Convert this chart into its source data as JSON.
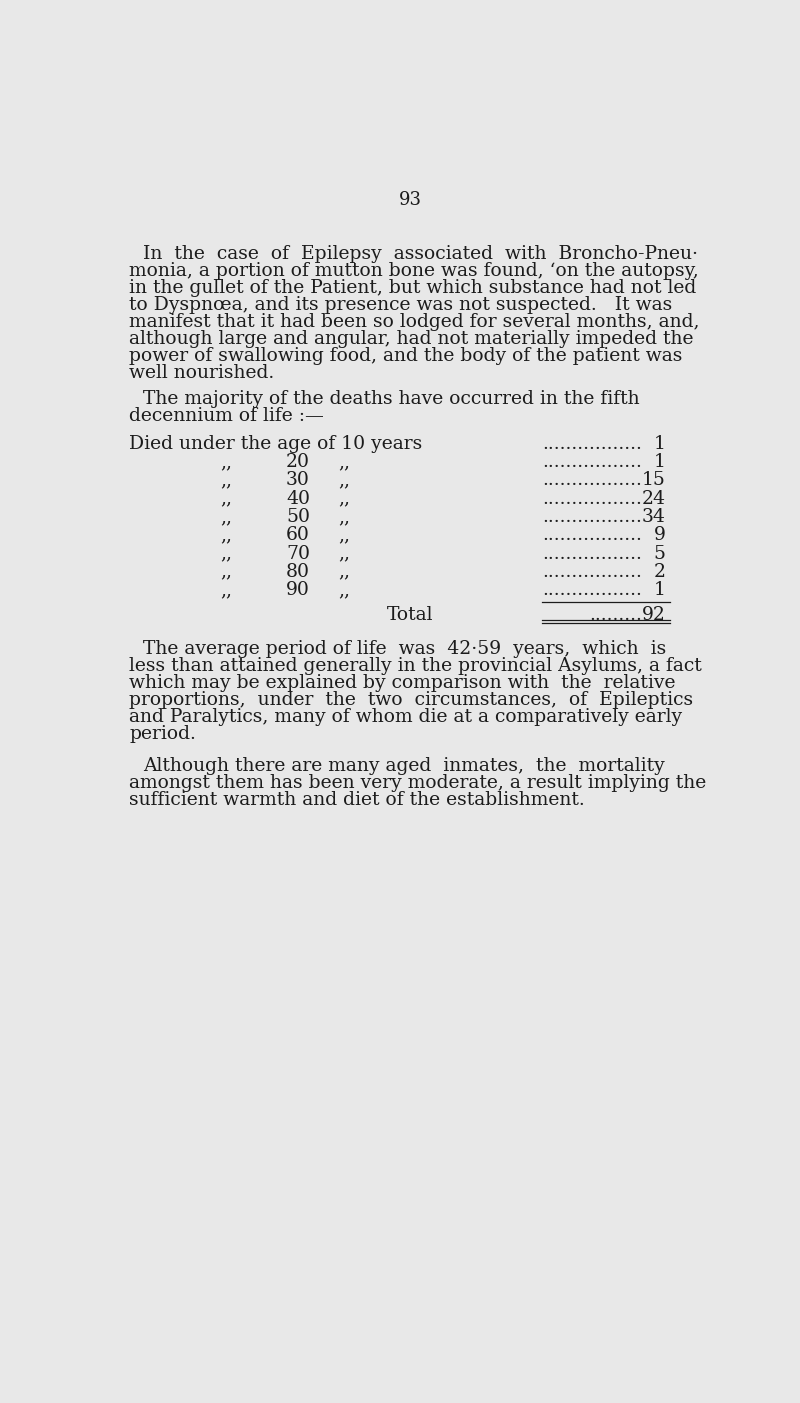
{
  "page_number": "93",
  "background_color": "#e8e8e8",
  "text_color": "#1c1c1c",
  "font_family": "serif",
  "p1_lines": [
    "In  the  case  of  Epilepsy  associated  with  Broncho-Pneu·",
    "monia, a portion of mutton bone was found, ‘on the autopsy,",
    "in the gullet of the Patient, but which substance had not led",
    "to Dyspnœa, and its presence was not suspected.   It was",
    "manifest that it had been so lodged for several months, and,",
    "although large and angular, had not materially impeded the",
    "power of swallowing food, and the body of the patient was",
    "well nourished."
  ],
  "p2_line1": "The majority of the deaths have occurred in the fifth",
  "p2_line2": "decennium of life :—",
  "table_header_text": "Died under the age of 10 years",
  "table_header_dots": ".................",
  "table_header_val": "1",
  "table_ages": [
    "20",
    "30",
    "40",
    "50",
    "60",
    "70",
    "80",
    "90"
  ],
  "table_vals": [
    "1",
    "15",
    "24",
    "34",
    "9",
    "5",
    "2",
    "1"
  ],
  "table_dots": ".................",
  "total_text": "Total",
  "total_dots": ".........",
  "total_val": "92",
  "p3_lines": [
    "The average period of life  was  42·59  years,  which  is",
    "less than attained generally in the provincial Asylums, a fact",
    "which may be explained by comparison with  the  relative",
    "proportions,  under  the  two  circumstances,  of  Epileptics",
    "and Paralytics, many of whom die at a comparatively early",
    "period."
  ],
  "p4_lines": [
    "Although there are many aged  inmates,  the  mortality",
    "amongst them has been very moderate, a result implying the",
    "sufficient warmth and diet of the establishment."
  ]
}
